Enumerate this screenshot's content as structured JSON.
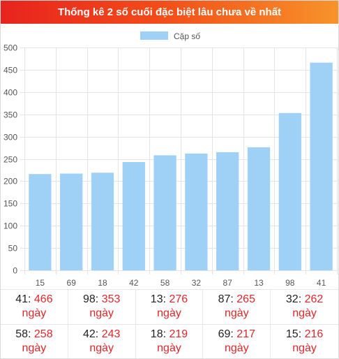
{
  "header": {
    "title": "Thống kê 2 số cuối đặc biệt lâu chưa về nhất"
  },
  "colors": {
    "bar": "#9fd0f5",
    "accent": "#e0262a",
    "grid": "#e3e3e3"
  },
  "chart_data": {
    "type": "bar",
    "categories": [
      "15",
      "69",
      "18",
      "42",
      "58",
      "32",
      "87",
      "13",
      "98",
      "41"
    ],
    "series": [
      {
        "name": "Cặp số",
        "values": [
          216,
          217,
          219,
          243,
          258,
          262,
          265,
          276,
          353,
          466
        ]
      }
    ],
    "ylim": [
      0,
      500
    ],
    "yticks": [
      0,
      50,
      100,
      150,
      200,
      250,
      300,
      350,
      400,
      450,
      500
    ],
    "grid": true,
    "legend": "top-center"
  },
  "stats": {
    "unit": "ngày",
    "items": [
      {
        "number": "41",
        "days": "466"
      },
      {
        "number": "98",
        "days": "353"
      },
      {
        "number": "13",
        "days": "276"
      },
      {
        "number": "87",
        "days": "265"
      },
      {
        "number": "32",
        "days": "262"
      },
      {
        "number": "58",
        "days": "258"
      },
      {
        "number": "42",
        "days": "243"
      },
      {
        "number": "18",
        "days": "219"
      },
      {
        "number": "69",
        "days": "217"
      },
      {
        "number": "15",
        "days": "216"
      }
    ]
  }
}
